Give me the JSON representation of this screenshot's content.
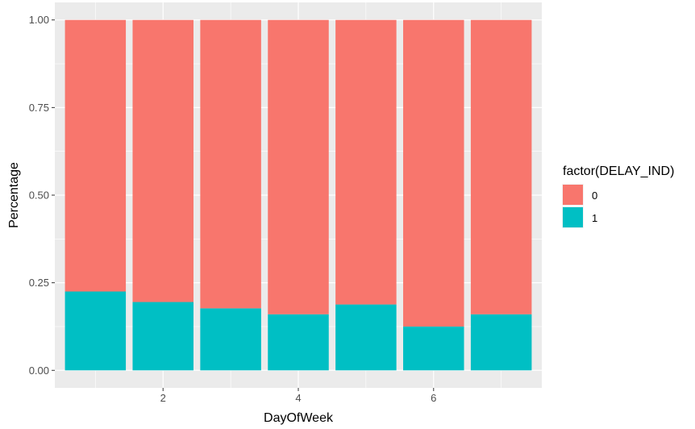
{
  "chart_data": {
    "type": "bar",
    "stacked": true,
    "x": [
      1,
      2,
      3,
      4,
      5,
      6,
      7
    ],
    "series": [
      {
        "name": "0",
        "values": [
          0.775,
          0.805,
          0.823,
          0.84,
          0.812,
          0.875,
          0.84
        ],
        "color": "#F8766D"
      },
      {
        "name": "1",
        "values": [
          0.225,
          0.195,
          0.177,
          0.16,
          0.188,
          0.125,
          0.16
        ],
        "color": "#00BFC4"
      }
    ],
    "xlabel": "DayOfWeek",
    "ylabel": "Percentage",
    "xlim": [
      0.4,
      7.6
    ],
    "ylim": [
      -0.05,
      1.05
    ],
    "x_ticks": [
      2,
      4,
      6
    ],
    "y_ticks": [
      0.0,
      0.25,
      0.5,
      0.75,
      1.0
    ],
    "x_tick_labels": [
      "2",
      "4",
      "6"
    ],
    "y_tick_labels": [
      "0.00",
      "0.25",
      "0.50",
      "0.75",
      "1.00"
    ],
    "grid": true,
    "panel_background": "#EBEBEB",
    "gridline_color": "#FFFFFF",
    "legend": {
      "title": "factor(DELAY_IND)",
      "position": "right",
      "entries": [
        "0",
        "1"
      ]
    }
  }
}
